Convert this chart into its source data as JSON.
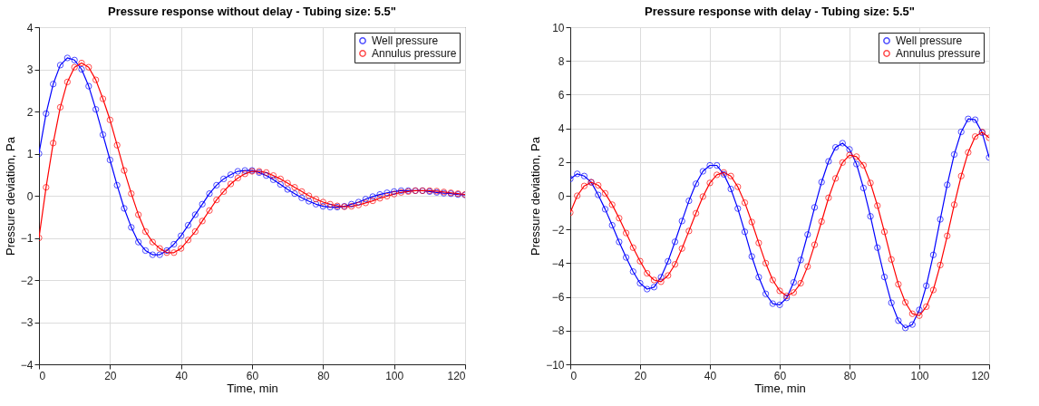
{
  "chart_data": [
    {
      "type": "line",
      "title": "Pressure response without delay - Tubing size: 5.5\"",
      "xlabel": "Time, min",
      "ylabel": "Pressure deviation, Pa",
      "x": [
        0,
        2,
        4,
        6,
        8,
        10,
        12,
        14,
        16,
        18,
        20,
        22,
        24,
        26,
        28,
        30,
        32,
        34,
        36,
        38,
        40,
        42,
        44,
        46,
        48,
        50,
        52,
        54,
        56,
        58,
        60,
        62,
        64,
        66,
        68,
        70,
        72,
        74,
        76,
        78,
        80,
        82,
        84,
        86,
        88,
        90,
        92,
        94,
        96,
        98,
        100,
        102,
        104,
        106,
        108,
        110,
        112,
        114,
        116,
        118,
        120
      ],
      "series": [
        {
          "name": "Well pressure",
          "color": "#0000ff",
          "values": [
            1.0,
            1.95,
            2.65,
            3.1,
            3.27,
            3.22,
            3.0,
            2.6,
            2.05,
            1.45,
            0.85,
            0.25,
            -0.3,
            -0.75,
            -1.1,
            -1.3,
            -1.4,
            -1.4,
            -1.3,
            -1.15,
            -0.95,
            -0.7,
            -0.45,
            -0.2,
            0.05,
            0.25,
            0.4,
            0.5,
            0.58,
            0.6,
            0.6,
            0.55,
            0.48,
            0.38,
            0.27,
            0.15,
            0.05,
            -0.05,
            -0.13,
            -0.2,
            -0.25,
            -0.27,
            -0.27,
            -0.25,
            -0.2,
            -0.15,
            -0.08,
            -0.02,
            0.03,
            0.07,
            0.1,
            0.12,
            0.12,
            0.12,
            0.12,
            0.1,
            0.08,
            0.06,
            0.05,
            0.03,
            0.02
          ]
        },
        {
          "name": "Annulus pressure",
          "color": "#ff0000",
          "values": [
            -1.0,
            0.2,
            1.25,
            2.1,
            2.7,
            3.05,
            3.15,
            3.05,
            2.75,
            2.3,
            1.8,
            1.2,
            0.6,
            0.05,
            -0.45,
            -0.85,
            -1.1,
            -1.25,
            -1.35,
            -1.35,
            -1.25,
            -1.05,
            -0.85,
            -0.6,
            -0.35,
            -0.1,
            0.1,
            0.28,
            0.42,
            0.52,
            0.58,
            0.58,
            0.55,
            0.48,
            0.4,
            0.3,
            0.2,
            0.1,
            0.0,
            -0.08,
            -0.15,
            -0.2,
            -0.24,
            -0.26,
            -0.25,
            -0.22,
            -0.17,
            -0.12,
            -0.06,
            -0.01,
            0.04,
            0.08,
            0.1,
            0.12,
            0.12,
            0.12,
            0.11,
            0.09,
            0.07,
            0.05,
            0.03
          ]
        }
      ],
      "xlim": [
        0,
        120
      ],
      "ylim": [
        -4,
        4
      ],
      "xticks": [
        0,
        20,
        40,
        60,
        80,
        100,
        120
      ],
      "yticks": [
        -4,
        -3,
        -2,
        -1,
        0,
        1,
        2,
        3,
        4
      ],
      "grid": true,
      "legend": "top right",
      "marker": "circle"
    },
    {
      "type": "line",
      "title": "Pressure response with delay - Tubing size: 5.5\"",
      "xlabel": "Time, min",
      "ylabel": "Pressure deviation, Pa",
      "x": [
        0,
        2,
        4,
        6,
        8,
        10,
        12,
        14,
        16,
        18,
        20,
        22,
        24,
        26,
        28,
        30,
        32,
        34,
        36,
        38,
        40,
        42,
        44,
        46,
        48,
        50,
        52,
        54,
        56,
        58,
        60,
        62,
        64,
        66,
        68,
        70,
        72,
        74,
        76,
        78,
        80,
        82,
        84,
        86,
        88,
        90,
        92,
        94,
        96,
        98,
        100,
        102,
        104,
        106,
        108,
        110,
        112,
        114,
        116,
        118,
        120
      ],
      "series": [
        {
          "name": "Well pressure",
          "color": "#0000ff",
          "values": [
            1.0,
            1.3,
            1.17,
            0.8,
            0.05,
            -0.8,
            -1.75,
            -2.74,
            -3.66,
            -4.5,
            -5.19,
            -5.54,
            -5.42,
            -4.83,
            -3.89,
            -2.73,
            -1.5,
            -0.3,
            0.71,
            1.45,
            1.8,
            1.8,
            1.27,
            0.4,
            -0.76,
            -2.14,
            -3.6,
            -4.83,
            -5.82,
            -6.4,
            -6.47,
            -6.06,
            -5.14,
            -3.81,
            -2.3,
            -0.69,
            0.81,
            2.04,
            2.87,
            3.12,
            2.75,
            1.88,
            0.46,
            -1.22,
            -3.08,
            -4.82,
            -6.35,
            -7.41,
            -7.84,
            -7.64,
            -6.77,
            -5.34,
            -3.51,
            -1.4,
            0.65,
            2.45,
            3.79,
            4.56,
            4.51,
            3.74,
            2.27
          ]
        },
        {
          "name": "Annulus pressure",
          "color": "#ff0000",
          "values": [
            -1.0,
            0.0,
            0.58,
            0.8,
            0.62,
            0.14,
            -0.53,
            -1.33,
            -2.21,
            -3.08,
            -3.88,
            -4.6,
            -5.0,
            -5.1,
            -4.73,
            -4.07,
            -3.13,
            -2.09,
            -1.04,
            -0.05,
            0.76,
            1.24,
            1.38,
            1.17,
            0.53,
            -0.41,
            -1.56,
            -2.8,
            -4.0,
            -5.0,
            -5.64,
            -5.94,
            -5.74,
            -5.19,
            -4.2,
            -2.91,
            -1.53,
            -0.12,
            1.03,
            1.97,
            2.41,
            2.32,
            1.81,
            0.76,
            -0.59,
            -2.14,
            -3.78,
            -5.25,
            -6.33,
            -7.0,
            -7.11,
            -6.58,
            -5.59,
            -4.11,
            -2.38,
            -0.53,
            1.17,
            2.57,
            3.51,
            3.78,
            3.44
          ]
        }
      ],
      "xlim": [
        0,
        120
      ],
      "ylim": [
        -10,
        10
      ],
      "xticks": [
        0,
        20,
        40,
        60,
        80,
        100,
        120
      ],
      "yticks": [
        -10,
        -8,
        -6,
        -4,
        -2,
        0,
        2,
        4,
        6,
        8,
        10
      ],
      "grid": true,
      "legend": "top right",
      "marker": "circle"
    }
  ]
}
